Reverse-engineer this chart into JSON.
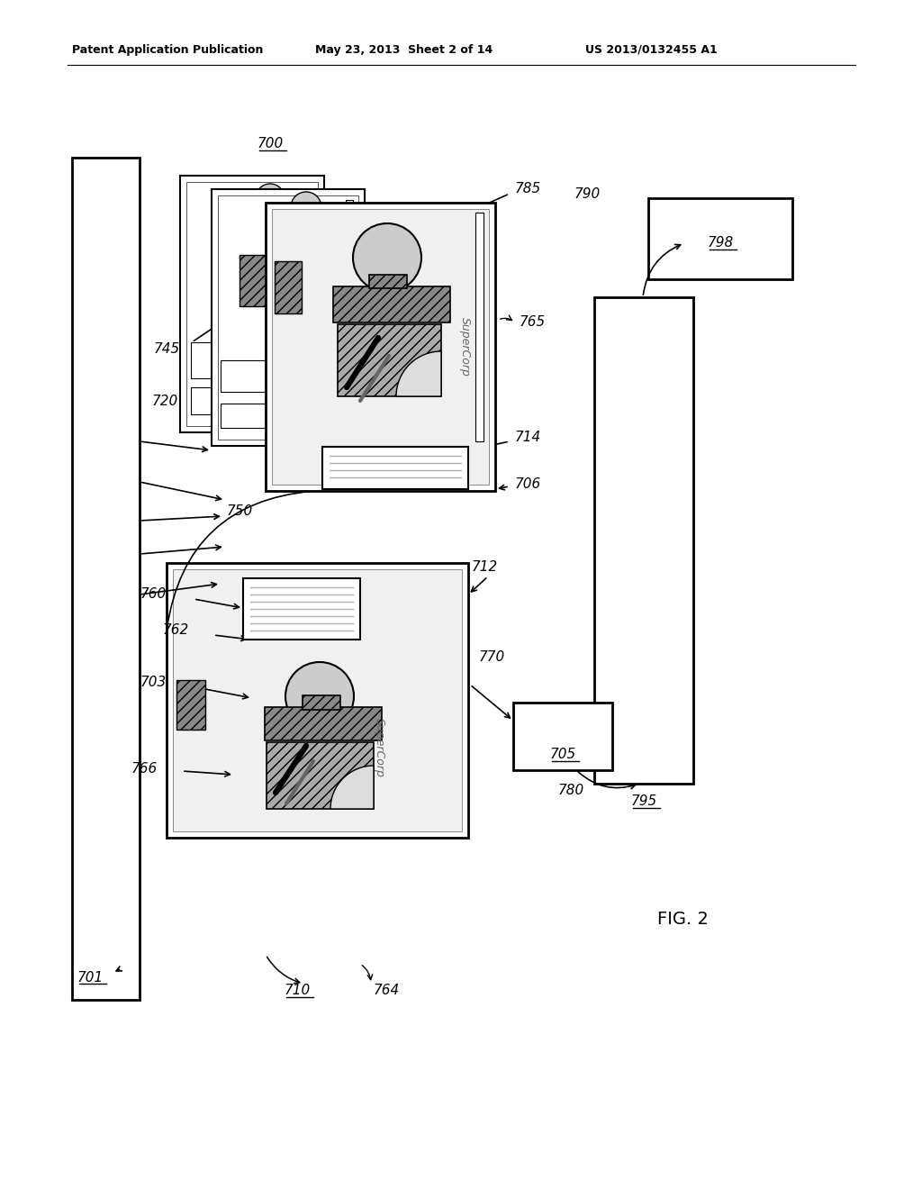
{
  "header_left": "Patent Application Publication",
  "header_mid": "May 23, 2013  Sheet 2 of 14",
  "header_right": "US 2013/0132455 A1",
  "fig_label": "FIG. 2",
  "bg_color": "#ffffff"
}
